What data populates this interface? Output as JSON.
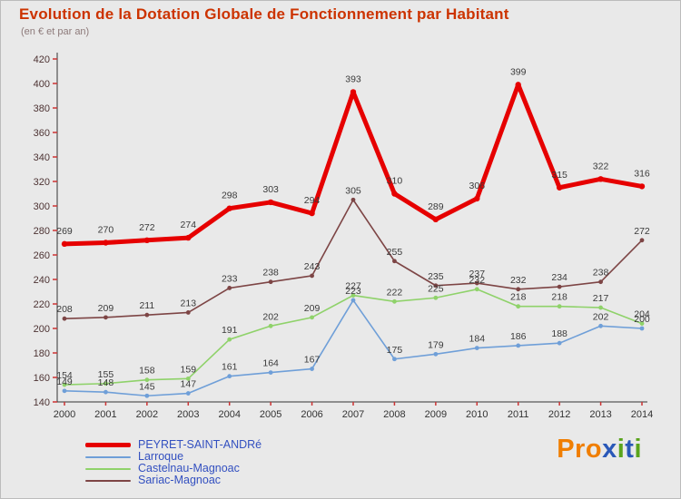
{
  "header": {
    "title": "Evolution de la Dotation Globale de Fonctionnement par Habitant",
    "subtitle": "(en € et par an)"
  },
  "colors": {
    "background": "#e9e9e9",
    "title": "#cc3300",
    "axis": "#333333",
    "tick_mark": "#cc3333",
    "ytick_text": "#4d3333",
    "xtick_text": "#333333",
    "value_label": "#3a3a3a",
    "legend_text": "#3350c0"
  },
  "chart_data": {
    "type": "line",
    "x": [
      2000,
      2001,
      2002,
      2003,
      2004,
      2005,
      2006,
      2007,
      2008,
      2009,
      2010,
      2011,
      2012,
      2013,
      2014
    ],
    "ylim": [
      140,
      420
    ],
    "ytick_step": 20,
    "grid": false,
    "legend_position": "bottom-left",
    "point_labels": true,
    "series": [
      {
        "name": "PEYRET-SAINT-ANDRé",
        "color": "#e60000",
        "stroke_width": 5,
        "values": [
          269,
          270,
          272,
          274,
          298,
          303,
          294,
          393,
          310,
          289,
          306,
          399,
          315,
          322,
          316
        ]
      },
      {
        "name": "Larroque",
        "color": "#6f9fd8",
        "stroke_width": 1.6,
        "values": [
          149,
          148,
          145,
          147,
          161,
          164,
          167,
          223,
          175,
          179,
          184,
          186,
          188,
          202,
          200
        ]
      },
      {
        "name": "Castelnau-Magnoac",
        "color": "#8fd26a",
        "stroke_width": 1.6,
        "values": [
          154,
          155,
          158,
          159,
          191,
          202,
          209,
          227,
          222,
          225,
          232,
          218,
          218,
          217,
          204
        ]
      },
      {
        "name": "Sariac-Magnoac",
        "color": "#7d4545",
        "stroke_width": 1.6,
        "values": [
          208,
          209,
          211,
          213,
          233,
          238,
          243,
          305,
          255,
          235,
          237,
          232,
          234,
          238,
          272
        ]
      }
    ]
  },
  "logo": {
    "pro": "Pro",
    "x": "x",
    "i1": "i",
    "t": "t",
    "i2": "i"
  }
}
